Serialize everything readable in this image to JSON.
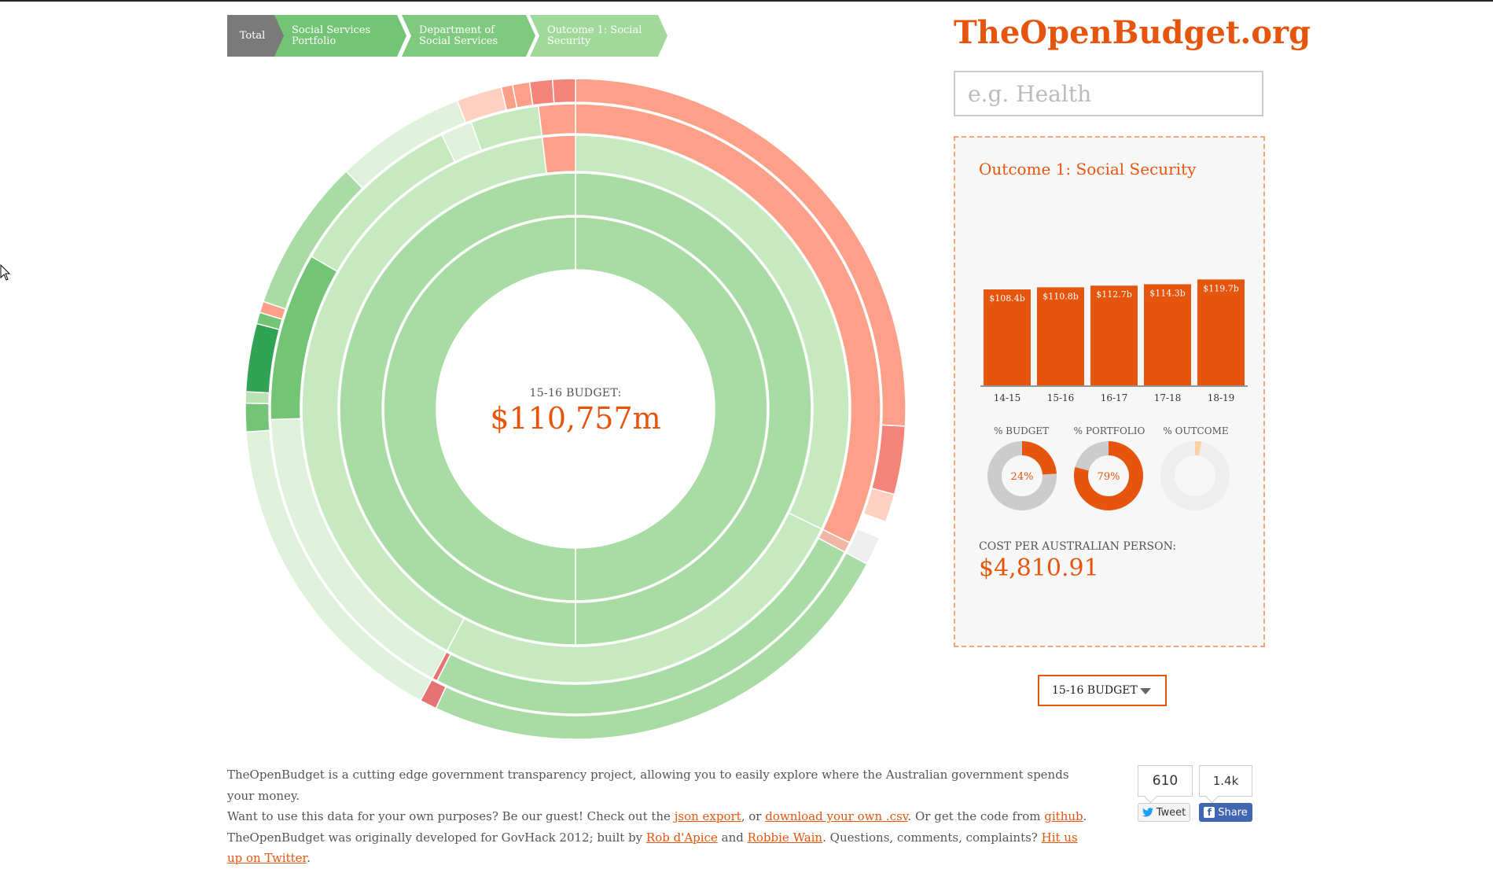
{
  "breadcrumb": [
    {
      "label": "Total"
    },
    {
      "label": "Social Services Portfolio"
    },
    {
      "label": "Department of Social Services"
    },
    {
      "label": "Outcome 1: Social Security"
    }
  ],
  "brand": "TheOpenBudget.org",
  "search": {
    "placeholder": "e.g. Health",
    "value": ""
  },
  "center": {
    "label": "15-16 BUDGET:",
    "value": "$110,757m"
  },
  "panel": {
    "title": "Outcome 1: Social Security",
    "cost_label": "COST PER AUSTRALIAN PERSON:",
    "cost_value": "$4,810.91",
    "donuts": [
      {
        "label": "% BUDGET",
        "value_text": "24%",
        "value": 0.24,
        "color": "#e6550d"
      },
      {
        "label": "% PORTFOLIO",
        "value_text": "79%",
        "value": 0.79,
        "color": "#e6550d"
      },
      {
        "label": "% OUTCOME",
        "value_text": "",
        "value": 0.03,
        "color": "#fdd0a2"
      }
    ]
  },
  "chart_data": {
    "type": "bar",
    "categories": [
      "14-15",
      "15-16",
      "16-17",
      "17-18",
      "18-19"
    ],
    "values": [
      108.4,
      110.8,
      112.7,
      114.3,
      119.7
    ],
    "data_labels": [
      "$108.4b",
      "$110.8b",
      "$112.7b",
      "$114.3b",
      "$119.7b"
    ],
    "title": "",
    "xlabel": "",
    "ylabel": "",
    "color": "#e6550d"
  },
  "year_select": {
    "value": "15-16 BUDGET"
  },
  "footer": {
    "line1": "TheOpenBudget is a cutting edge government transparency project, allowing you to easily explore where the Australian government spends your money.",
    "line2_a": "Want to use this data for your own purposes? Be our guest! Check out the ",
    "link_json": "json export",
    "line2_b": ", or ",
    "link_csv": "download your own .csv",
    "line2_c": ". Or get the code from ",
    "link_github": "github",
    "line2_d": ".",
    "line3_a": "TheOpenBudget was originally developed for GovHack 2012; built by ",
    "link_rob": "Rob d'Apice",
    "line3_b": " and ",
    "link_robbie": "Robbie Wain",
    "line3_c": ". Questions, comments, complaints? ",
    "link_twitter": "Hit us up on Twitter",
    "line3_d": "."
  },
  "social": {
    "tweet_count": "610",
    "tweet_label": "Tweet",
    "share_count": "1.4k",
    "share_label": "Share"
  },
  "colors": {
    "accent": "#e6550d",
    "green_light": "#c7e9c0",
    "green_mid": "#a1d99b",
    "red_light": "#fcae91"
  }
}
